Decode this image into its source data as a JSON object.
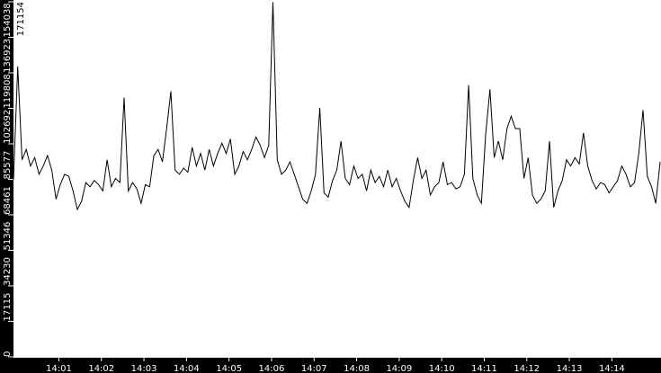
{
  "chart_data": {
    "type": "line",
    "title": "",
    "xlabel": "",
    "ylabel": "",
    "ylim": [
      0,
      171154
    ],
    "grid": false,
    "y_ticks": [
      "0",
      "17115",
      "34230",
      "51346",
      "68461",
      "85577",
      "102692",
      "119808",
      "136923",
      "154038",
      "171154"
    ],
    "x_ticks": [
      "14:01",
      "14:02",
      "14:03",
      "14:04",
      "14:05",
      "14:06",
      "14:07",
      "14:08",
      "14:09",
      "14:10",
      "14:11",
      "14:12",
      "14:13",
      "14:14"
    ],
    "x_start": "13:59:56",
    "x_step_seconds": 6,
    "series": [
      {
        "color": "#000000",
        "values": [
          85300,
          140000,
          95000,
          100000,
          92000,
          96000,
          88000,
          92000,
          97000,
          90000,
          76000,
          83000,
          88000,
          87000,
          80000,
          71000,
          75000,
          84000,
          82000,
          85000,
          83000,
          80000,
          95000,
          82000,
          86000,
          84000,
          125000,
          80000,
          84000,
          81000,
          74000,
          83000,
          82000,
          97000,
          100000,
          94000,
          110000,
          128000,
          90000,
          88000,
          91000,
          89000,
          101000,
          92000,
          98000,
          90000,
          100000,
          92000,
          98000,
          103000,
          98000,
          105000,
          88000,
          92000,
          99000,
          95000,
          100000,
          106000,
          102000,
          96000,
          102000,
          171000,
          95000,
          88000,
          90000,
          94000,
          88000,
          82000,
          76000,
          74000,
          80000,
          88000,
          120000,
          79000,
          77000,
          85000,
          90000,
          104000,
          86000,
          83000,
          92000,
          86000,
          88000,
          80000,
          90000,
          84000,
          87000,
          82000,
          90000,
          82000,
          86000,
          80000,
          75000,
          72000,
          85000,
          96000,
          86000,
          90000,
          78000,
          82000,
          84000,
          94000,
          83000,
          84000,
          81000,
          82000,
          88000,
          131000,
          86000,
          78000,
          74000,
          107000,
          129000,
          96000,
          104000,
          95000,
          110000,
          116000,
          110000,
          110000,
          86000,
          96000,
          78000,
          74000,
          76000,
          80000,
          104000,
          72000,
          80000,
          85000,
          95000,
          92000,
          96000,
          93000,
          108000,
          92000,
          85000,
          81000,
          84000,
          83000,
          79000,
          82000,
          85000,
          92000,
          88000,
          82000,
          84000,
          98000,
          119000,
          87000,
          82000,
          74000,
          94000
        ]
      }
    ]
  }
}
